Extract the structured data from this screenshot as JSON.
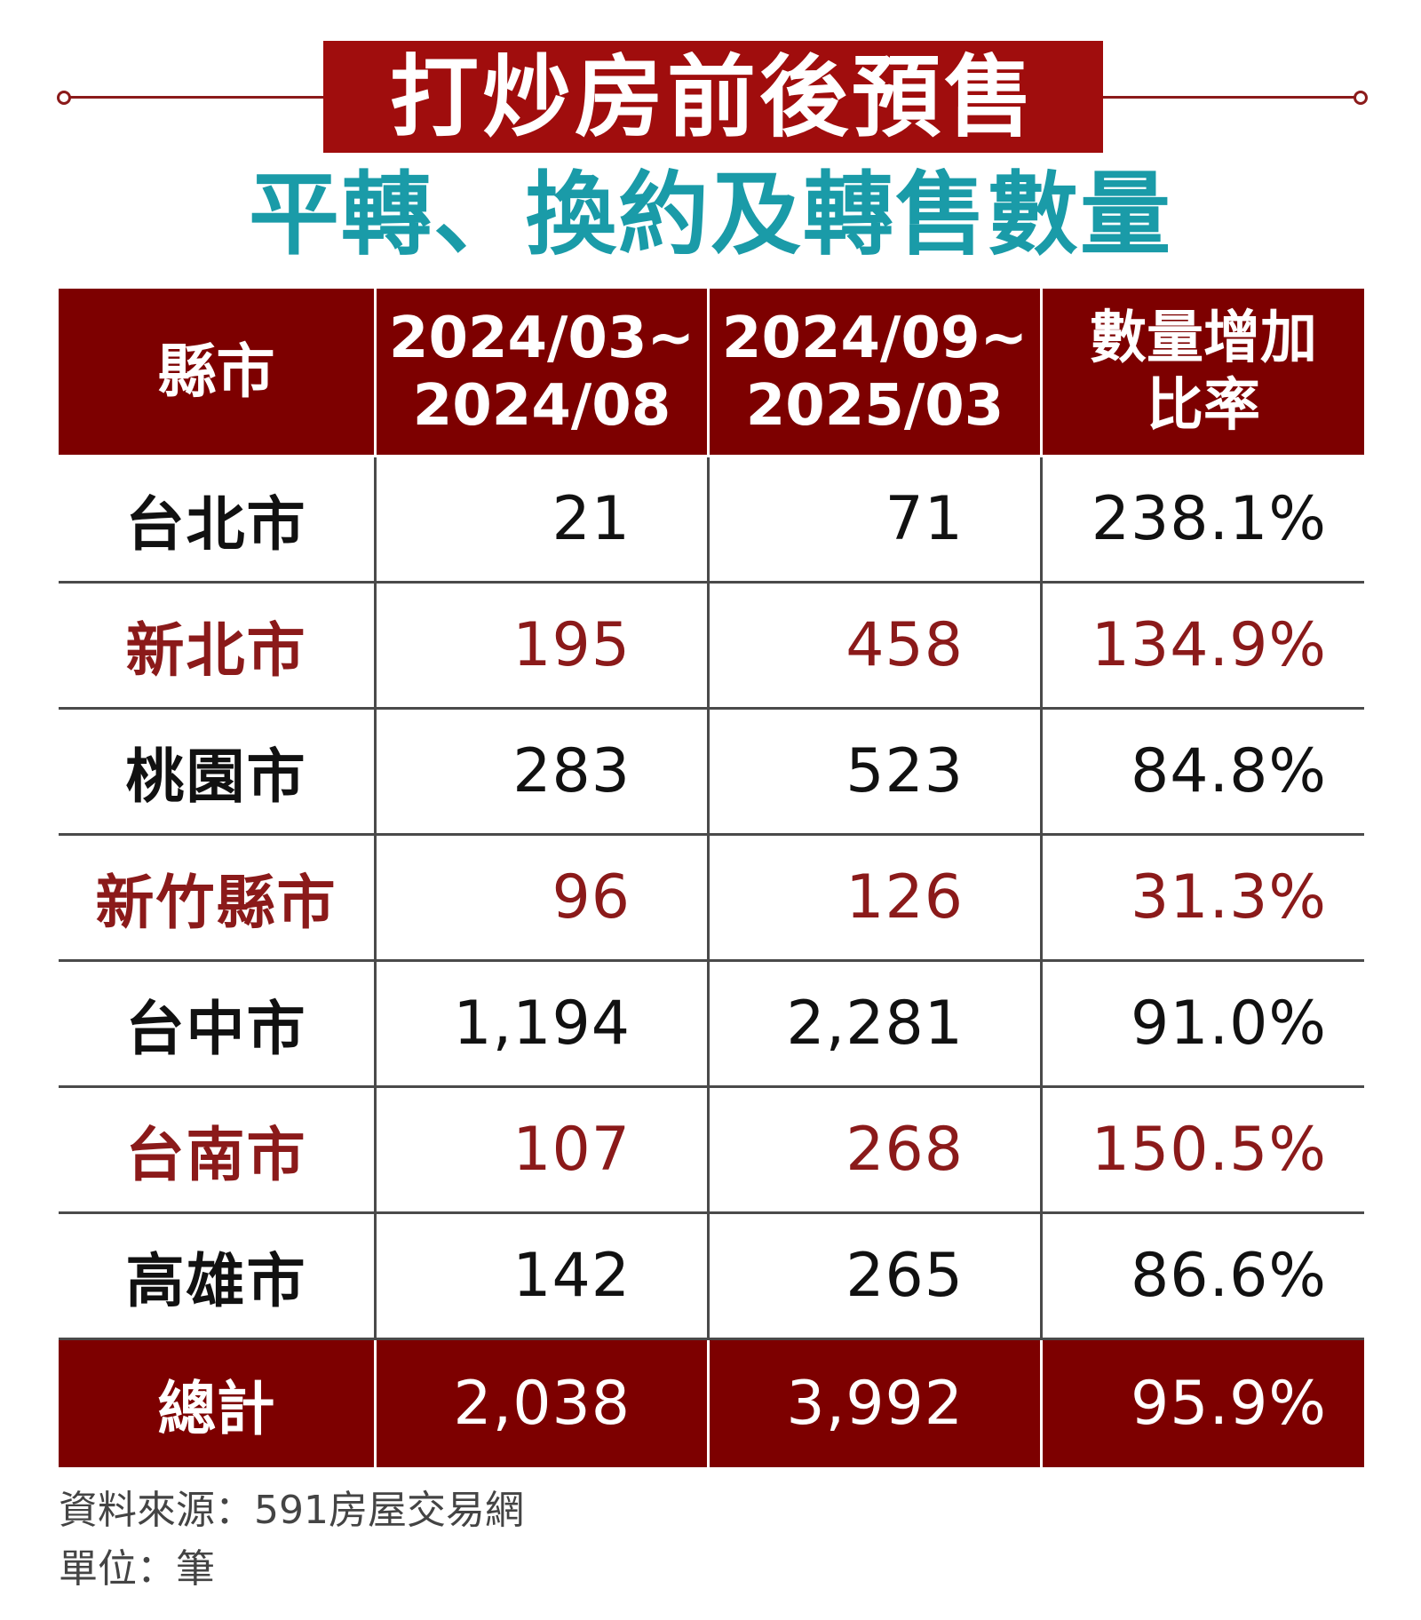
{
  "title": "打炒房前後預售",
  "subtitle": "平轉、換約及轉售數量",
  "colors": {
    "title_bg": "#a00d0d",
    "subtitle": "#1a9ba8",
    "header_bg": "#7d0000",
    "row_red_text": "#8b1a1a",
    "row_black_text": "#111111"
  },
  "chart_data": {
    "type": "table",
    "columns": [
      "縣市",
      "2024/03~ 2024/08",
      "2024/09~ 2025/03",
      "數量增加 比率"
    ],
    "header": {
      "c0": "縣市",
      "c1_line1": "2024/03~",
      "c1_line2": "2024/08",
      "c2_line1": "2024/09~",
      "c2_line2": "2025/03",
      "c3_line1": "數量增加",
      "c3_line2": "比率"
    },
    "rows": [
      {
        "city": "台北市",
        "period1": "21",
        "period2": "71",
        "rate": "238.1%"
      },
      {
        "city": "新北市",
        "period1": "195",
        "period2": "458",
        "rate": "134.9%"
      },
      {
        "city": "桃園市",
        "period1": "283",
        "period2": "523",
        "rate": "84.8%"
      },
      {
        "city": "新竹縣市",
        "period1": "96",
        "period2": "126",
        "rate": "31.3%"
      },
      {
        "city": "台中市",
        "period1": "1,194",
        "period2": "2,281",
        "rate": "91.0%"
      },
      {
        "city": "台南市",
        "period1": "107",
        "period2": "268",
        "rate": "150.5%"
      },
      {
        "city": "高雄市",
        "period1": "142",
        "period2": "265",
        "rate": "86.6%"
      }
    ],
    "total": {
      "city": "總計",
      "period1": "2,038",
      "period2": "3,992",
      "rate": "95.9%"
    }
  },
  "notes": {
    "source": "資料來源：591房屋交易網",
    "unit": "單位：筆"
  }
}
